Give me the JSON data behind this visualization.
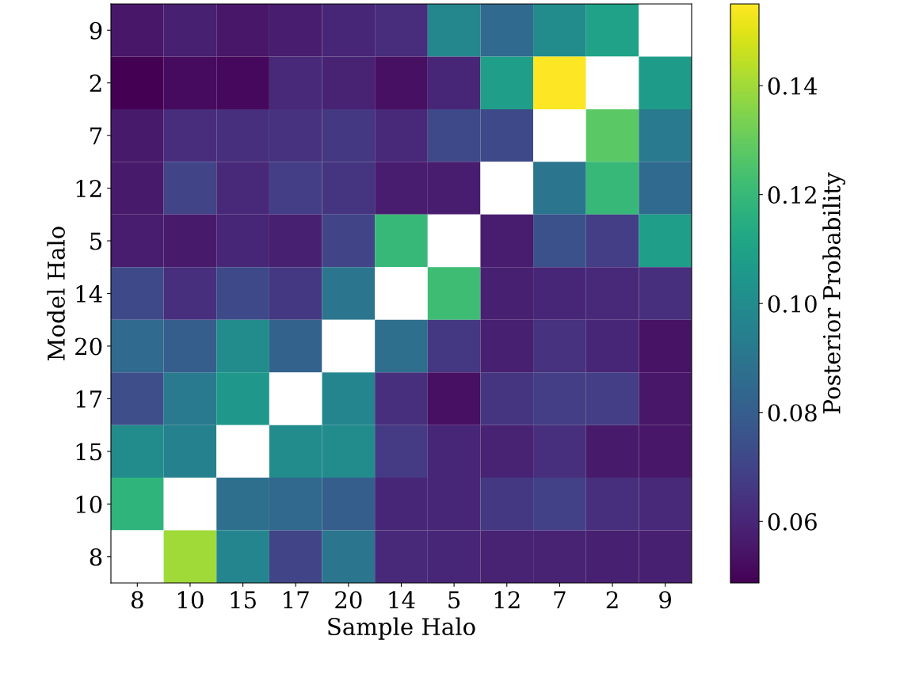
{
  "chart_data": {
    "type": "heatmap",
    "xlabel": "Sample Halo",
    "ylabel": "Model Halo",
    "clabel": "Posterior Probability",
    "categories": [
      "8",
      "10",
      "15",
      "17",
      "20",
      "14",
      "5",
      "12",
      "7",
      "2",
      "9"
    ],
    "y_categories": [
      "9",
      "2",
      "7",
      "12",
      "5",
      "14",
      "20",
      "17",
      "15",
      "10",
      "8"
    ],
    "cells": [
      [
        0.055,
        0.058,
        0.055,
        0.057,
        0.06,
        0.062,
        0.098,
        0.085,
        0.1,
        0.11,
        null
      ],
      [
        0.049,
        0.052,
        0.051,
        0.061,
        0.059,
        0.053,
        0.06,
        0.108,
        0.155,
        null,
        0.107
      ],
      [
        0.056,
        0.062,
        0.063,
        0.064,
        0.066,
        0.061,
        0.072,
        0.072,
        null,
        0.128,
        0.092
      ],
      [
        0.056,
        0.07,
        0.061,
        0.068,
        0.065,
        0.057,
        0.057,
        null,
        0.09,
        0.12,
        0.085
      ],
      [
        0.057,
        0.056,
        0.06,
        0.058,
        0.07,
        0.12,
        null,
        0.057,
        0.075,
        0.068,
        0.108
      ],
      [
        0.072,
        0.063,
        0.072,
        0.066,
        0.09,
        null,
        0.122,
        0.058,
        0.06,
        0.061,
        0.063
      ],
      [
        0.085,
        0.08,
        0.1,
        0.082,
        null,
        0.087,
        0.066,
        0.058,
        0.064,
        0.06,
        0.054
      ],
      [
        0.074,
        0.092,
        0.105,
        null,
        0.097,
        0.063,
        0.053,
        0.065,
        0.068,
        0.068,
        0.055
      ],
      [
        0.1,
        0.095,
        null,
        0.1,
        0.1,
        0.067,
        0.06,
        0.059,
        0.063,
        0.056,
        0.055
      ],
      [
        0.118,
        null,
        0.087,
        0.084,
        0.08,
        0.06,
        0.06,
        0.066,
        0.069,
        0.063,
        0.061
      ],
      [
        null,
        0.14,
        0.097,
        0.07,
        0.09,
        0.061,
        0.06,
        0.059,
        0.059,
        0.058,
        0.058
      ]
    ],
    "clim": [
      0.0487,
      0.155
    ],
    "cticks": [
      {
        "value": 0.06,
        "label": "0.06"
      },
      {
        "value": 0.08,
        "label": "0.08"
      },
      {
        "value": 0.1,
        "label": "0.10"
      },
      {
        "value": 0.12,
        "label": "0.12"
      },
      {
        "value": 0.14,
        "label": "0.14"
      }
    ]
  }
}
